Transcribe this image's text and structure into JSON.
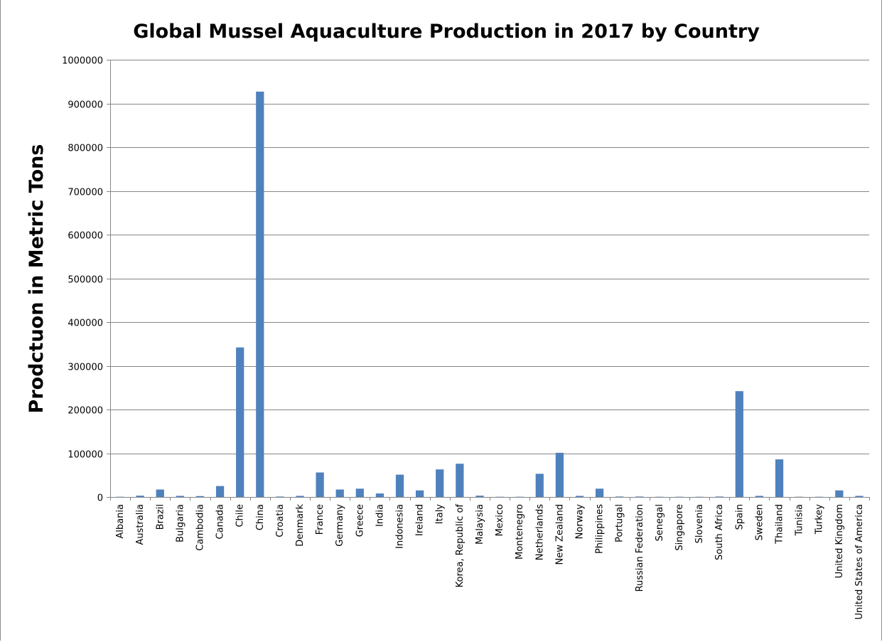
{
  "chart_data": {
    "type": "bar",
    "title": "Global Mussel Aquaculture Production in 2017 by Country",
    "ylabel": "Prodctuon in Metric Tons",
    "xlabel": "",
    "ylim": [
      0,
      1000000
    ],
    "ytick_step": 100000,
    "yticks": [
      "0",
      "100000",
      "200000",
      "300000",
      "400000",
      "500000",
      "600000",
      "700000",
      "800000",
      "900000",
      "1000000"
    ],
    "grid": true,
    "legend": "none",
    "bar_color": "#4f81bd",
    "categories": [
      "Albania",
      "Australia",
      "Brazil",
      "Bulgaria",
      "Cambodia",
      "Canada",
      "Chile",
      "China",
      "Croatia",
      "Denmark",
      "France",
      "Germany",
      "Greece",
      "India",
      "Indonesia",
      "Ireland",
      "Italy",
      "Korea, Republic of",
      "Malaysia",
      "Mexico",
      "Montenegro",
      "Netherlands",
      "New Zealand",
      "Norway",
      "Philippines",
      "Portugal",
      "Russian Federation",
      "Senegal",
      "Singapore",
      "Slovenia",
      "South Africa",
      "Spain",
      "Sweden",
      "Thailand",
      "Tunisia",
      "Turkey",
      "United Kingdom",
      "United States of America"
    ],
    "values": [
      500,
      3000,
      17000,
      2500,
      2000,
      25000,
      342000,
      927000,
      1000,
      2500,
      56000,
      17000,
      19000,
      8000,
      51000,
      15000,
      63000,
      76000,
      3000,
      500,
      500,
      53000,
      101000,
      2500,
      19000,
      1000,
      1000,
      500,
      500,
      500,
      1000,
      242000,
      2500,
      86000,
      500,
      500,
      15000,
      2500
    ]
  }
}
